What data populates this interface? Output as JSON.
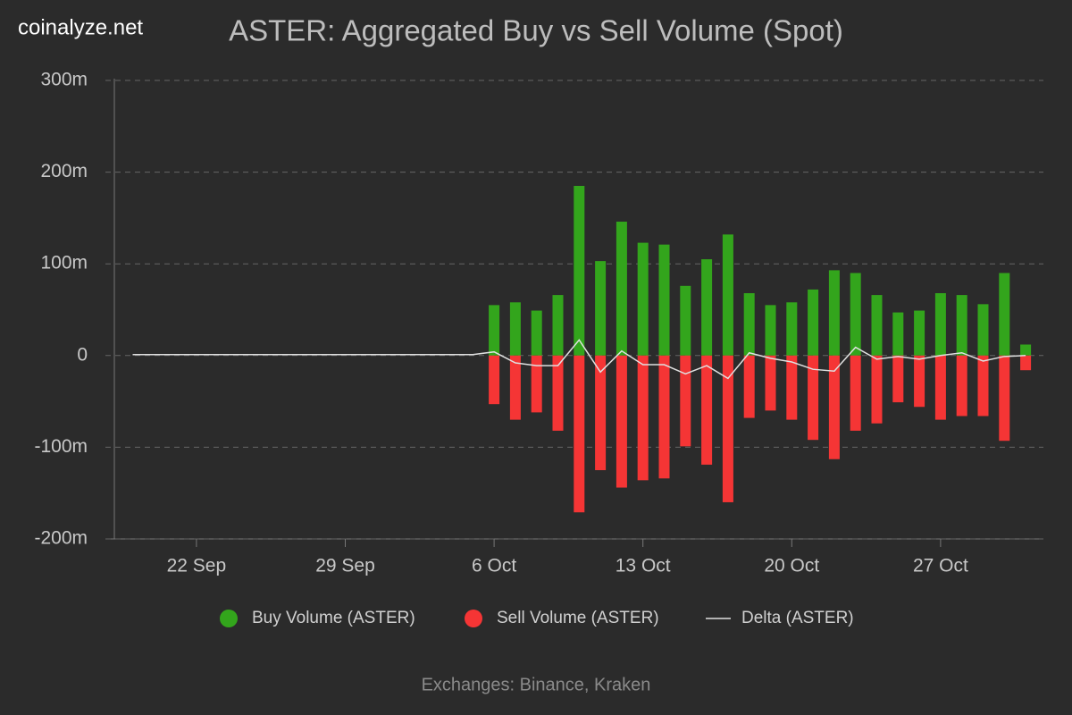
{
  "brand": "coinalyze.net",
  "chart_data": {
    "type": "bar",
    "title": "ASTER: Aggregated Buy vs Sell Volume (Spot)",
    "footer": "Exchanges: Binance, Kraken",
    "x": [
      "19 Sep",
      "20 Sep",
      "21 Sep",
      "22 Sep",
      "23 Sep",
      "24 Sep",
      "25 Sep",
      "26 Sep",
      "27 Sep",
      "28 Sep",
      "29 Sep",
      "30 Sep",
      "1 Oct",
      "2 Oct",
      "3 Oct",
      "4 Oct",
      "5 Oct",
      "6 Oct",
      "7 Oct",
      "8 Oct",
      "9 Oct",
      "10 Oct",
      "11 Oct",
      "12 Oct",
      "13 Oct",
      "14 Oct",
      "15 Oct",
      "16 Oct",
      "17 Oct",
      "18 Oct",
      "19 Oct",
      "20 Oct",
      "21 Oct",
      "22 Oct",
      "23 Oct",
      "24 Oct",
      "25 Oct",
      "26 Oct",
      "27 Oct",
      "28 Oct",
      "29 Oct",
      "30 Oct",
      "31 Oct"
    ],
    "xticks": [
      "22 Sep",
      "29 Sep",
      "6 Oct",
      "13 Oct",
      "20 Oct",
      "27 Oct"
    ],
    "series": [
      {
        "name": "Buy Volume (ASTER)",
        "color": "#33a51c",
        "kind": "bar",
        "values": [
          null,
          null,
          null,
          null,
          null,
          null,
          null,
          null,
          null,
          null,
          null,
          null,
          null,
          null,
          null,
          null,
          null,
          55,
          58,
          49,
          66,
          185,
          103,
          146,
          123,
          121,
          76,
          105,
          132,
          68,
          55,
          58,
          72,
          93,
          90,
          66,
          47,
          49,
          68,
          66,
          56,
          90,
          12
        ]
      },
      {
        "name": "Sell Volume (ASTER)",
        "color": "#f53535",
        "kind": "bar",
        "values": [
          null,
          null,
          null,
          null,
          null,
          null,
          null,
          null,
          null,
          null,
          null,
          null,
          null,
          null,
          null,
          null,
          null,
          -53,
          -70,
          -62,
          -82,
          -171,
          -125,
          -144,
          -136,
          -134,
          -99,
          -119,
          -160,
          -68,
          -60,
          -70,
          -92,
          -113,
          -82,
          -74,
          -51,
          -56,
          -70,
          -66,
          -66,
          -93,
          -16
        ]
      },
      {
        "name": "Delta (ASTER)",
        "color": "#e0e0e0",
        "kind": "line",
        "values": [
          1,
          1,
          1,
          1,
          1,
          1,
          1,
          1,
          1,
          1,
          1,
          1,
          1,
          1,
          1,
          1,
          1,
          4,
          -8,
          -11,
          -11,
          17,
          -18,
          5,
          -10,
          -10,
          -20,
          -11,
          -25,
          3,
          -3,
          -7,
          -15,
          -17,
          9,
          -4,
          -1,
          -4,
          0,
          3,
          -6,
          -1,
          0
        ]
      }
    ],
    "ylim": [
      -200,
      300
    ],
    "yticks": [
      {
        "value": -200,
        "label": "-200m"
      },
      {
        "value": -100,
        "label": "-100m"
      },
      0,
      {
        "value": 100,
        "label": "100m"
      },
      {
        "value": 200,
        "label": "200m"
      },
      {
        "value": 300,
        "label": "300m"
      }
    ],
    "grid": true
  }
}
